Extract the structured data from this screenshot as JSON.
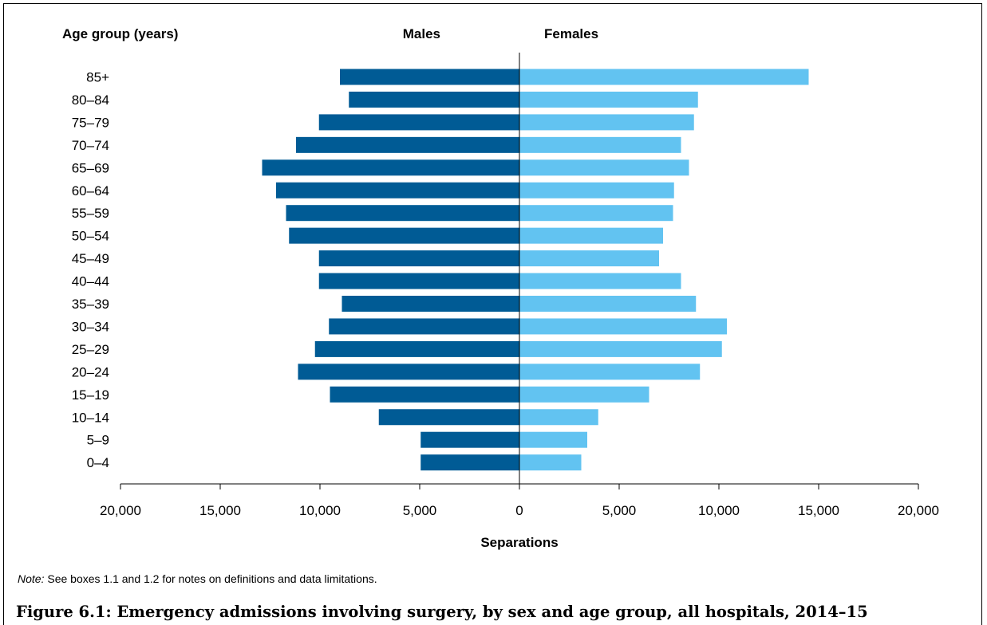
{
  "chart_data": {
    "type": "bar",
    "orientation": "horizontal",
    "layout": "population-pyramid",
    "y_axis_label": "Age group (years)",
    "categories": [
      "85+",
      "80–84",
      "75–79",
      "70–74",
      "65–69",
      "60–64",
      "55–59",
      "50–54",
      "45–49",
      "40–44",
      "35–39",
      "30–34",
      "25–29",
      "20–24",
      "15–19",
      "10–14",
      "5–9",
      "0–4"
    ],
    "series": [
      {
        "name": "Males",
        "color": "#005b95",
        "side": "left",
        "values": [
          9000,
          8550,
          10050,
          11200,
          12900,
          12200,
          11700,
          11550,
          10050,
          10050,
          8900,
          9550,
          10250,
          11100,
          9500,
          7050,
          4950,
          4950
        ]
      },
      {
        "name": "Females",
        "color": "#62c3f1",
        "side": "right",
        "values": [
          14500,
          8950,
          8750,
          8100,
          8500,
          7750,
          7700,
          7200,
          7000,
          8100,
          8850,
          10400,
          10150,
          9050,
          6500,
          3950,
          3400,
          3100
        ]
      }
    ],
    "x_axis": {
      "label": "Separations",
      "ticks": [
        "20,000",
        "15,000",
        "10,000",
        "5,000",
        "0",
        "5,000",
        "10,000",
        "15,000",
        "20,000"
      ],
      "range": [
        -20000,
        20000
      ]
    },
    "grid": false
  },
  "note": {
    "label": "Note:",
    "text": " See boxes 1.1 and 1.2 for notes on definitions and data limitations."
  },
  "caption": "Figure 6.1: Emergency admissions involving surgery, by sex and age group, all hospitals, 2014–15"
}
